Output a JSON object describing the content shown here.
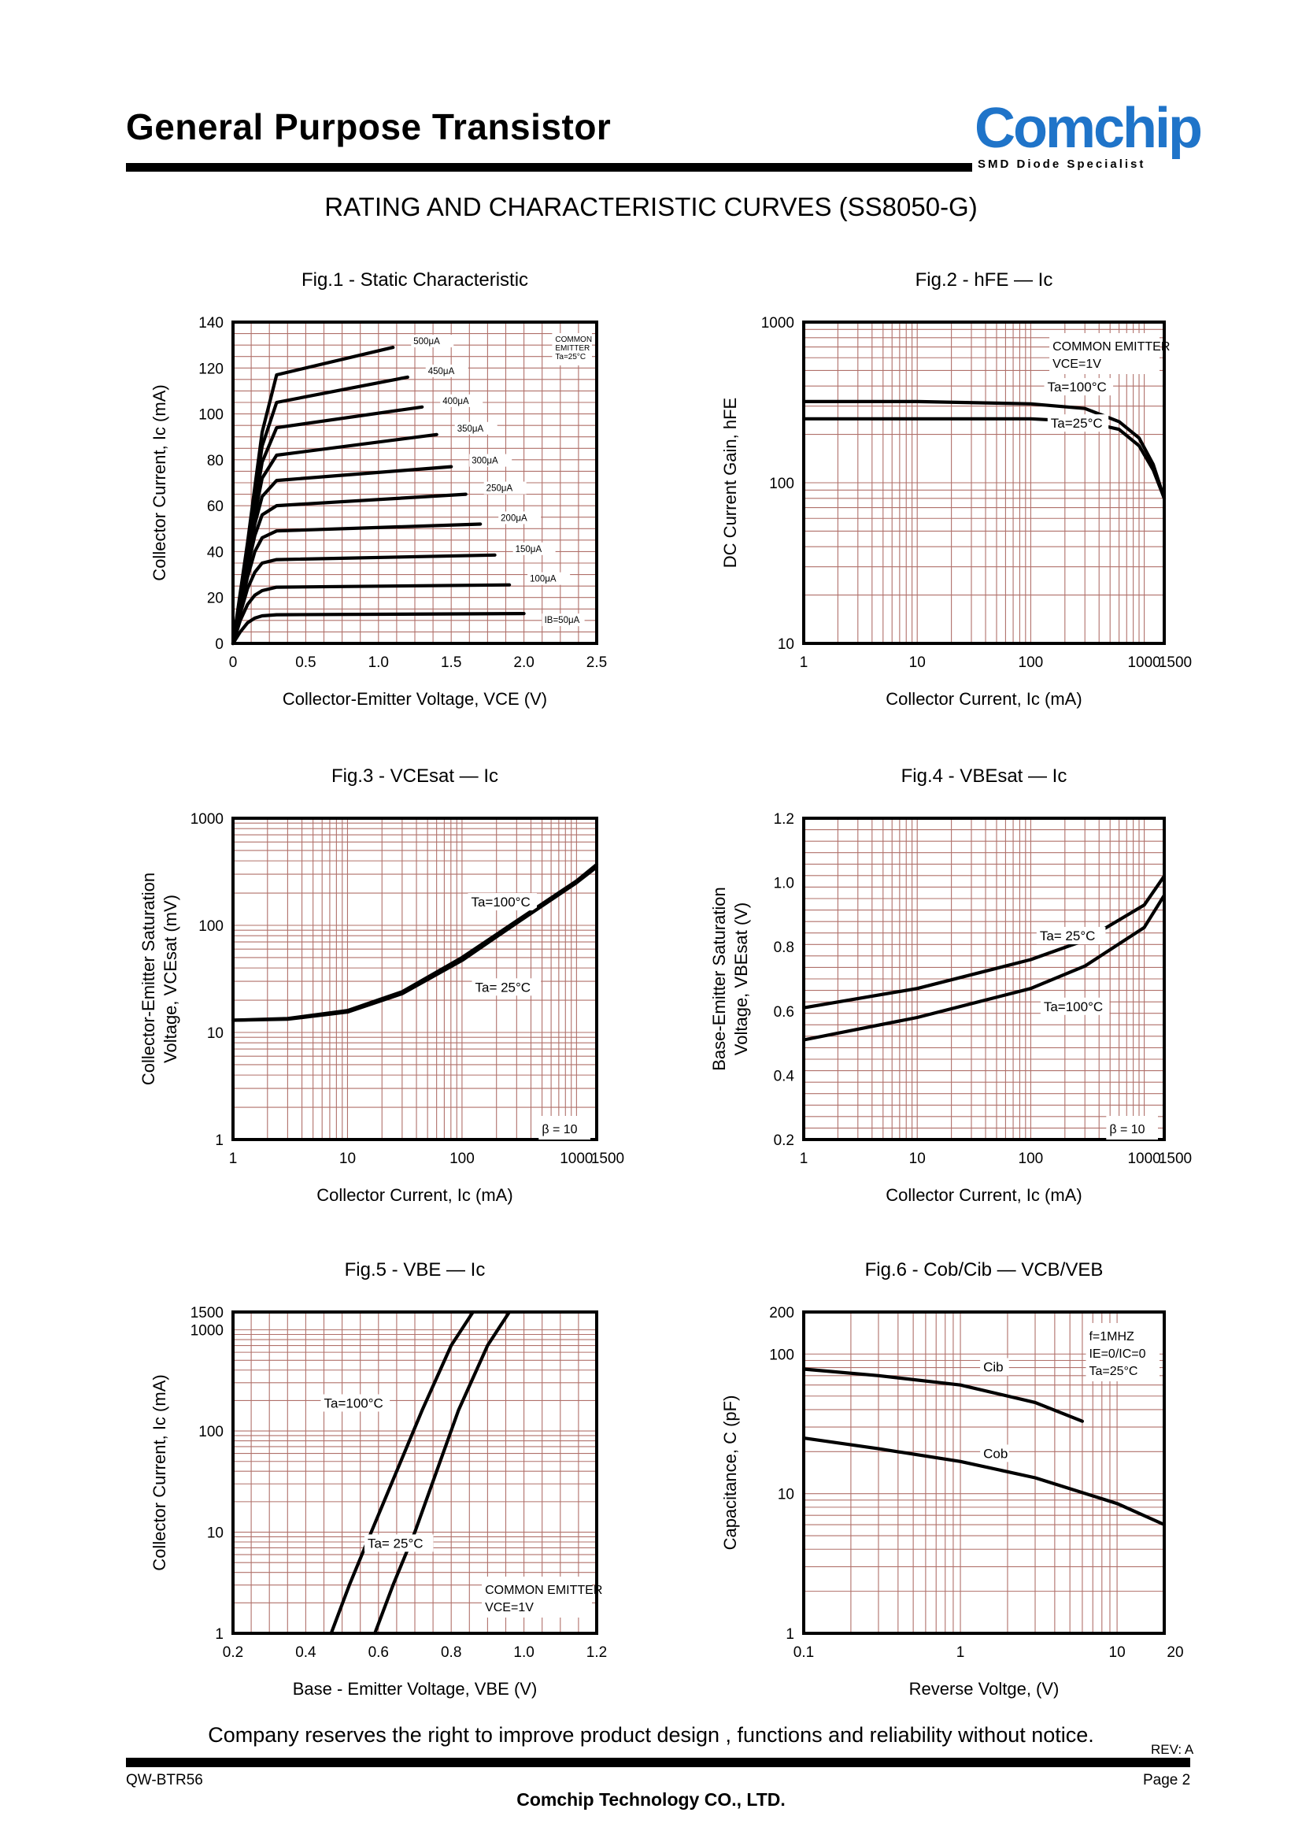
{
  "header": {
    "title": "General Purpose Transistor",
    "logo_text": "Comchip",
    "logo_tagline": "SMD Diode Specialist",
    "subtitle": "RATING AND CHARACTERISTIC CURVES (SS8050-G)"
  },
  "colors": {
    "grid": "#b0706a",
    "curve": "#000000",
    "logo": "#1f74c9"
  },
  "chart_data": [
    {
      "type": "line",
      "title": "Fig.1 - Static Characteristic",
      "xlabel": "Collector-Emitter Voltage, VCE (V)",
      "ylabel": "Collector Current, Ic (mA)",
      "xscale": "linear",
      "yscale": "linear",
      "xlim": [
        0,
        2.5
      ],
      "ylim": [
        0,
        140
      ],
      "xticks": [
        "0",
        "0.5",
        "1.0",
        "1.5",
        "2.0",
        "2.5"
      ],
      "yticks": [
        "0",
        "20",
        "40",
        "60",
        "80",
        "100",
        "120",
        "140"
      ],
      "annotation": [
        "COMMON",
        "EMITTER",
        "Ta=25°C"
      ],
      "grid": true,
      "series": [
        {
          "label": "IB=50μA",
          "x": [
            0,
            0.05,
            0.1,
            0.15,
            0.2,
            0.3,
            2.0
          ],
          "y": [
            0,
            5,
            9,
            11,
            12,
            12.5,
            13
          ]
        },
        {
          "label": "100μA",
          "x": [
            0,
            0.05,
            0.1,
            0.15,
            0.2,
            0.3,
            1.9
          ],
          "y": [
            0,
            10,
            17,
            21,
            23,
            24.5,
            25.5
          ]
        },
        {
          "label": "150μA",
          "x": [
            0,
            0.05,
            0.1,
            0.15,
            0.2,
            0.3,
            1.8
          ],
          "y": [
            0,
            13,
            24,
            31,
            35,
            36.5,
            38.5
          ]
        },
        {
          "label": "200μA",
          "x": [
            0,
            0.05,
            0.1,
            0.15,
            0.2,
            0.3,
            1.7
          ],
          "y": [
            0,
            15,
            29,
            40,
            46,
            49,
            52
          ]
        },
        {
          "label": "250μA",
          "x": [
            0,
            0.05,
            0.1,
            0.15,
            0.2,
            0.3,
            1.6
          ],
          "y": [
            0,
            17,
            33,
            47,
            56,
            60,
            65
          ]
        },
        {
          "label": "300μA",
          "x": [
            0,
            0.05,
            0.1,
            0.15,
            0.2,
            0.3,
            1.5
          ],
          "y": [
            0,
            18,
            36,
            52,
            64,
            71,
            77
          ]
        },
        {
          "label": "350μA",
          "x": [
            0,
            0.05,
            0.1,
            0.15,
            0.2,
            0.3,
            1.4
          ],
          "y": [
            0,
            19,
            38,
            56,
            72,
            82,
            91
          ]
        },
        {
          "label": "400μA",
          "x": [
            0,
            0.05,
            0.1,
            0.15,
            0.2,
            0.3,
            1.3
          ],
          "y": [
            0,
            20,
            40,
            60,
            79,
            94,
            103
          ]
        },
        {
          "label": "450μA",
          "x": [
            0,
            0.05,
            0.1,
            0.15,
            0.2,
            0.3,
            1.2
          ],
          "y": [
            0,
            21,
            42,
            64,
            86,
            105,
            116
          ]
        },
        {
          "label": "500μA",
          "x": [
            0,
            0.05,
            0.1,
            0.15,
            0.2,
            0.3,
            1.1
          ],
          "y": [
            0,
            22,
            44,
            68,
            92,
            117,
            129
          ]
        }
      ]
    },
    {
      "type": "line",
      "title": "Fig.2 - hFE — Ic",
      "xlabel": "Collector Current, Ic (mA)",
      "ylabel": "DC Current Gain, hFE",
      "xscale": "log",
      "yscale": "log",
      "xlim": [
        1,
        1500
      ],
      "ylim": [
        10,
        1000
      ],
      "xticks": [
        "1",
        "10",
        "100",
        "1000",
        "1500"
      ],
      "yticks": [
        "10",
        "100",
        "1000"
      ],
      "annotation": [
        "COMMON EMITTER",
        "VCE=1V"
      ],
      "grid": true,
      "series": [
        {
          "label": "Ta=100°C",
          "x": [
            1,
            10,
            100,
            300,
            600,
            900,
            1200,
            1500
          ],
          "y": [
            320,
            320,
            310,
            290,
            240,
            190,
            130,
            80
          ]
        },
        {
          "label": "Ta=25°C",
          "x": [
            1,
            10,
            100,
            300,
            600,
            900,
            1200,
            1500
          ],
          "y": [
            250,
            250,
            250,
            240,
            215,
            170,
            120,
            80
          ]
        }
      ]
    },
    {
      "type": "line",
      "title": "Fig.3 - VCEsat — Ic",
      "xlabel": "Collector Current, Ic (mA)",
      "ylabel": "Collector-Emitter Saturation Voltage, VCEsat (mV)",
      "xscale": "log",
      "yscale": "log",
      "xlim": [
        1,
        1500
      ],
      "ylim": [
        1,
        1000
      ],
      "xticks": [
        "1",
        "10",
        "100",
        "1000",
        "1500"
      ],
      "yticks": [
        "1",
        "10",
        "100",
        "1000"
      ],
      "annotation": [
        "β = 10"
      ],
      "grid": true,
      "series": [
        {
          "label": "Ta=100°C",
          "x": [
            1,
            3,
            10,
            30,
            100,
            300,
            1000,
            1500
          ],
          "y": [
            13,
            13.5,
            16,
            24,
            50,
            110,
            260,
            370
          ]
        },
        {
          "label": "Ta= 25°C",
          "x": [
            1,
            3,
            10,
            30,
            100,
            300,
            1000,
            1500
          ],
          "y": [
            13,
            13.3,
            15.5,
            23,
            47,
            105,
            250,
            350
          ]
        }
      ]
    },
    {
      "type": "line",
      "title": "Fig.4 - VBEsat — Ic",
      "xlabel": "Collector Current, Ic (mA)",
      "ylabel": "Base-Emitter Saturation Voltage, VBEsat (V)",
      "xscale": "log",
      "yscale": "linear",
      "xlim": [
        1,
        1500
      ],
      "ylim": [
        0.2,
        1.2
      ],
      "xticks": [
        "1",
        "10",
        "100",
        "1000",
        "1500"
      ],
      "yticks": [
        "0.2",
        "0.4",
        "0.6",
        "0.8",
        "1.0",
        "1.2"
      ],
      "annotation": [
        "β = 10"
      ],
      "grid": true,
      "series": [
        {
          "label": "Ta= 25°C",
          "x": [
            1,
            10,
            100,
            300,
            1000,
            1500
          ],
          "y": [
            0.61,
            0.67,
            0.76,
            0.82,
            0.93,
            1.02
          ]
        },
        {
          "label": "Ta=100°C",
          "x": [
            1,
            10,
            100,
            300,
            1000,
            1500
          ],
          "y": [
            0.51,
            0.58,
            0.67,
            0.74,
            0.86,
            0.96
          ]
        }
      ]
    },
    {
      "type": "line",
      "title": "Fig.5 - VBE — Ic",
      "xlabel": "Base - Emitter Voltage, VBE (V)",
      "ylabel": "Collector Current, Ic (mA)",
      "xscale": "linear",
      "yscale": "log",
      "xlim": [
        0.2,
        1.2
      ],
      "ylim": [
        1,
        1500
      ],
      "xticks": [
        "0.2",
        "0.4",
        "0.6",
        "0.8",
        "1.0",
        "1.2"
      ],
      "yticks": [
        "1",
        "10",
        "100",
        "1000",
        "1500"
      ],
      "annotation": [
        "COMMON EMITTER",
        "VCE=1V"
      ],
      "grid": true,
      "series": [
        {
          "label": "Ta=100°C",
          "x": [
            0.47,
            0.52,
            0.58,
            0.65,
            0.72,
            0.8,
            0.86
          ],
          "y": [
            1,
            3,
            10,
            40,
            160,
            700,
            1500
          ]
        },
        {
          "label": "Ta= 25°C",
          "x": [
            0.59,
            0.64,
            0.7,
            0.76,
            0.82,
            0.9,
            0.96
          ],
          "y": [
            1,
            3,
            10,
            40,
            160,
            700,
            1500
          ]
        }
      ]
    },
    {
      "type": "line",
      "title": "Fig.6 - Cob/Cib — VCB/VEB",
      "xlabel": "Reverse Voltge, (V)",
      "ylabel": "Capacitance, C (pF)",
      "xscale": "log",
      "yscale": "log",
      "xlim": [
        0.1,
        20
      ],
      "ylim": [
        1,
        200
      ],
      "xticks": [
        "0.1",
        "1",
        "10",
        "20"
      ],
      "yticks": [
        "1",
        "10",
        "100",
        "200"
      ],
      "annotation": [
        "f=1MHZ",
        "IE=0/IC=0",
        "Ta=25°C"
      ],
      "grid": true,
      "series": [
        {
          "label": "Cib",
          "x": [
            0.1,
            0.3,
            1,
            3,
            6
          ],
          "y": [
            78,
            70,
            60,
            45,
            33
          ]
        },
        {
          "label": "Cob",
          "x": [
            0.1,
            0.3,
            1,
            3,
            10,
            20
          ],
          "y": [
            25,
            21,
            17,
            13,
            8.5,
            6
          ]
        }
      ]
    }
  ],
  "footer": {
    "notice": "Company reserves the right to improve product design , functions and reliability without notice.",
    "rev": "REV: A",
    "doc_no": "QW-BTR56",
    "page": "Page 2",
    "company": "Comchip Technology CO., LTD."
  }
}
